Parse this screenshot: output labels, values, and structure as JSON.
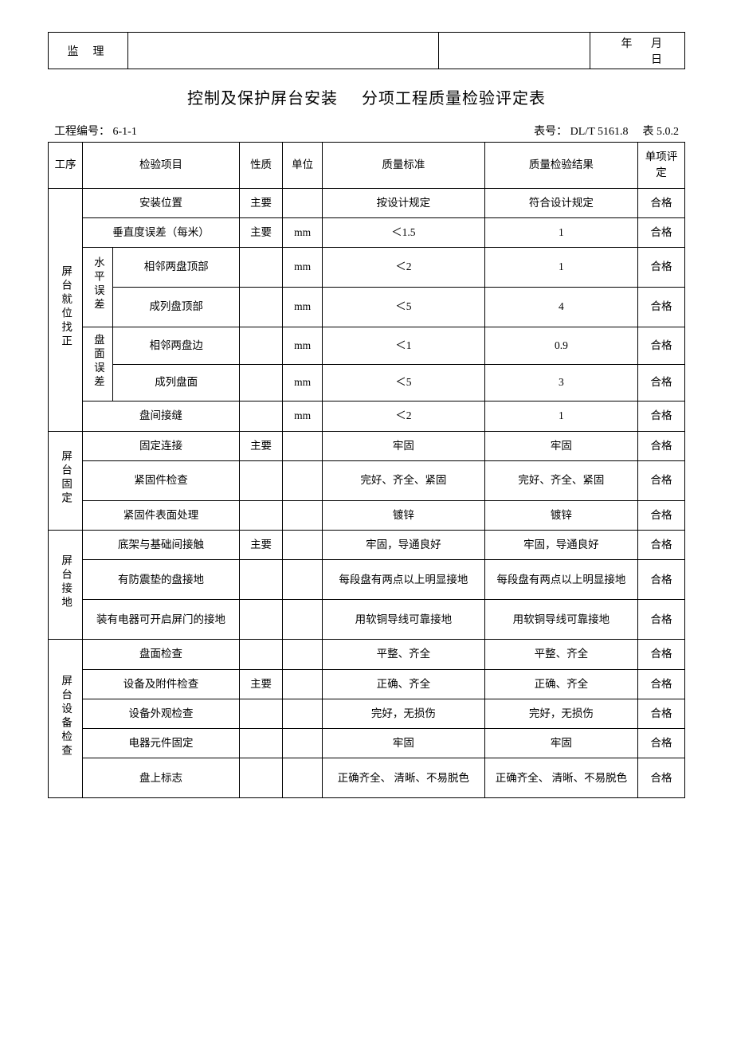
{
  "header_box": {
    "left_label": "监理",
    "date_label": "年 月 日"
  },
  "title_left": "控制及保护屏台安装",
  "title_right": "分项工程质量检验评定表",
  "meta": {
    "proj_no_label": "工程编号：",
    "proj_no": "6-1-1",
    "table_no_label": "表号：",
    "table_no": "DL/T 5161.8",
    "table_sub": "表 5.0.2"
  },
  "columns": {
    "seq": "工序",
    "item": "检验项目",
    "nature": "性质",
    "unit": "单位",
    "standard": "质量标准",
    "result": "质量检验结果",
    "eval": "单项评定"
  },
  "groups": [
    {
      "name": "屏台就位找正",
      "rows": [
        {
          "sub1": "",
          "sub2": "",
          "item_full": "安装位置",
          "nature": "主要",
          "unit": "",
          "standard": "按设计规定",
          "result": "符合设计规定",
          "eval": "合格"
        },
        {
          "sub1": "",
          "sub2": "",
          "item_full": "垂直度误差（每米）",
          "nature": "主要",
          "unit": "mm",
          "standard": "＜1.5",
          "result": "1",
          "eval": "合格"
        },
        {
          "sub1": "水平误差",
          "sub2": "相邻两盘顶部",
          "nature": "",
          "unit": "mm",
          "standard": "＜2",
          "result": "1",
          "eval": "合格"
        },
        {
          "sub1": "",
          "sub2": "成列盘顶部",
          "nature": "",
          "unit": "mm",
          "standard": "＜5",
          "result": "4",
          "eval": "合格"
        },
        {
          "sub1": "盘面误差",
          "sub2": "相邻两盘边",
          "nature": "",
          "unit": "mm",
          "standard": "＜1",
          "result": "0.9",
          "eval": "合格"
        },
        {
          "sub1": "",
          "sub2": "成列盘面",
          "nature": "",
          "unit": "mm",
          "standard": "＜5",
          "result": "3",
          "eval": "合格"
        },
        {
          "sub1": "",
          "sub2": "",
          "item_full": "盘间接缝",
          "nature": "",
          "unit": "mm",
          "standard": "＜2",
          "result": "1",
          "eval": "合格"
        }
      ]
    },
    {
      "name": "屏台固定",
      "rows": [
        {
          "item_full": "固定连接",
          "nature": "主要",
          "unit": "",
          "standard": "牢固",
          "result": "牢固",
          "eval": "合格"
        },
        {
          "item_full": "紧固件检查",
          "nature": "",
          "unit": "",
          "standard": "完好、齐全、紧固",
          "result": "完好、齐全、紧固",
          "eval": "合格"
        },
        {
          "item_full": "紧固件表面处理",
          "nature": "",
          "unit": "",
          "standard": "镀锌",
          "result": "镀锌",
          "eval": "合格"
        }
      ]
    },
    {
      "name": "屏台接地",
      "rows": [
        {
          "item_full": "底架与基础间接触",
          "nature": "主要",
          "unit": "",
          "standard": "牢固，导通良好",
          "result": "牢固，导通良好",
          "eval": "合格"
        },
        {
          "item_full": "有防震垫的盘接地",
          "nature": "",
          "unit": "",
          "standard": "每段盘有两点以上明显接地",
          "result": "每段盘有两点以上明显接地",
          "eval": "合格"
        },
        {
          "item_full": "装有电器可开启屏门的接地",
          "nature": "",
          "unit": "",
          "standard": "用软铜导线可靠接地",
          "result": "用软铜导线可靠接地",
          "eval": "合格"
        }
      ]
    },
    {
      "name": "屏台设备检查",
      "rows": [
        {
          "item_full": "盘面检查",
          "nature": "",
          "unit": "",
          "standard": "平整、齐全",
          "result": "平整、齐全",
          "eval": "合格"
        },
        {
          "item_full": "设备及附件检查",
          "nature": "主要",
          "unit": "",
          "standard": "正确、齐全",
          "result": "正确、齐全",
          "eval": "合格"
        },
        {
          "item_full": "设备外观检查",
          "nature": "",
          "unit": "",
          "standard": "完好，无损伤",
          "result": "完好，无损伤",
          "eval": "合格"
        },
        {
          "item_full": "电器元件固定",
          "nature": "",
          "unit": "",
          "standard": "牢固",
          "result": "牢固",
          "eval": "合格"
        },
        {
          "item_full": "盘上标志",
          "nature": "",
          "unit": "",
          "standard": "正确齐全、 清晰、不易脱色",
          "result": "正确齐全、 清晰、不易脱色",
          "eval": "合格"
        }
      ]
    }
  ]
}
